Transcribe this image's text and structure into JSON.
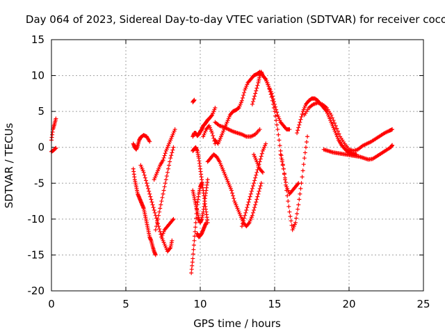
{
  "chart_data": {
    "type": "scatter",
    "title": "Day 064 of 2023, Sidereal Day-to-day VTEC variation (SDTVAR) for receiver coco",
    "xlabel": "GPS time / hours",
    "ylabel": "SDTVAR / TECUs",
    "xlim": [
      0,
      25
    ],
    "ylim": [
      -20,
      15
    ],
    "x_ticks": [
      0,
      5,
      10,
      15,
      20,
      25
    ],
    "y_ticks": [
      -20,
      -15,
      -10,
      -5,
      0,
      5,
      10,
      15
    ],
    "x_tick_labels": [
      "0",
      "5",
      "10",
      "15",
      "20",
      "25"
    ],
    "y_tick_labels": [
      "-20",
      "-15",
      "-10",
      "-5",
      "0",
      "5",
      "10",
      "15"
    ],
    "grid": true,
    "marker": "+",
    "color": "#ff0000",
    "series": [
      {
        "name": "arc-a",
        "x": [
          0.0,
          0.1,
          0.2,
          0.3
        ],
        "y": [
          1.0,
          2.5,
          3.2,
          4.0
        ]
      },
      {
        "name": "arc-b",
        "x": [
          0.0,
          0.15,
          0.3
        ],
        "y": [
          -0.6,
          -0.4,
          -0.1
        ]
      },
      {
        "name": "arc-c",
        "x": [
          5.5,
          5.6,
          5.7,
          5.8,
          5.9,
          6.0,
          6.1,
          6.2,
          6.3,
          6.4,
          6.5,
          6.6,
          6.7,
          6.8,
          6.9,
          7.0
        ],
        "y": [
          -3.0,
          -4.5,
          -5.5,
          -6.5,
          -7.0,
          -7.5,
          -8.0,
          -8.5,
          -9.5,
          -10.5,
          -11.5,
          -12.5,
          -13.0,
          -13.8,
          -14.5,
          -15.0
        ]
      },
      {
        "name": "arc-d",
        "x": [
          5.5,
          5.6,
          5.7,
          5.8,
          5.9,
          6.0,
          6.2,
          6.4,
          6.6
        ],
        "y": [
          0.5,
          0.0,
          -0.3,
          0.3,
          1.0,
          1.4,
          1.7,
          1.5,
          0.8
        ]
      },
      {
        "name": "arc-e",
        "x": [
          6.0,
          6.2,
          6.4,
          6.6,
          6.8,
          7.0,
          7.2,
          7.4,
          7.6,
          7.8,
          8.0,
          8.1
        ],
        "y": [
          -2.5,
          -3.5,
          -5.0,
          -6.5,
          -8.0,
          -9.5,
          -11.0,
          -12.5,
          -13.5,
          -14.5,
          -14.0,
          -13.0
        ]
      },
      {
        "name": "arc-f",
        "x": [
          6.9,
          7.1,
          7.3,
          7.5,
          7.7,
          7.9,
          8.1,
          8.3
        ],
        "y": [
          -4.5,
          -3.5,
          -2.5,
          -1.8,
          -0.5,
          0.5,
          1.5,
          2.5
        ]
      },
      {
        "name": "arc-g",
        "x": [
          7.0,
          7.2,
          7.4,
          7.6,
          7.8,
          8.0,
          8.2
        ],
        "y": [
          -11.5,
          -9.5,
          -7.5,
          -5.5,
          -3.5,
          -1.5,
          0.0
        ]
      },
      {
        "name": "arc-h",
        "x": [
          7.4,
          7.6,
          7.8,
          8.0,
          8.2
        ],
        "y": [
          -12.5,
          -11.5,
          -11.0,
          -10.5,
          -10.0
        ]
      },
      {
        "name": "arc-i",
        "x": [
          9.4,
          9.5,
          9.6,
          9.7,
          9.8,
          9.9,
          10.0,
          10.1
        ],
        "y": [
          -17.5,
          -15.5,
          -13.0,
          -10.5,
          -8.0,
          -6.5,
          -5.5,
          -5.0
        ]
      },
      {
        "name": "arc-j",
        "x": [
          9.5,
          9.6,
          9.7,
          9.8,
          9.9,
          10.0,
          10.1,
          10.2,
          10.3,
          10.4,
          10.5
        ],
        "y": [
          -6.0,
          -7.0,
          -8.0,
          -9.0,
          -10.0,
          -10.5,
          -10.0,
          -9.0,
          -7.5,
          -6.0,
          -4.5
        ]
      },
      {
        "name": "arc-k",
        "x": [
          9.5,
          9.6,
          9.7,
          9.8,
          9.9,
          10.0,
          10.1,
          10.2,
          10.3,
          10.4,
          10.5
        ],
        "y": [
          -0.5,
          -0.2,
          0.0,
          -0.5,
          -1.5,
          -3.0,
          -4.5,
          -6.0,
          -7.5,
          -9.0,
          -10.5
        ]
      },
      {
        "name": "arc-l",
        "x": [
          9.5,
          9.6,
          9.7,
          9.8,
          9.9,
          10.0,
          10.1,
          10.2,
          10.3,
          10.4,
          10.5,
          10.6,
          10.8,
          11.0
        ],
        "y": [
          1.5,
          2.0,
          2.0,
          1.6,
          1.8,
          2.2,
          2.5,
          3.0,
          3.2,
          3.5,
          3.8,
          4.0,
          4.5,
          5.5
        ]
      },
      {
        "name": "arc-m",
        "x": [
          9.5,
          9.6
        ],
        "y": [
          6.3,
          6.6
        ]
      },
      {
        "name": "arc-n",
        "x": [
          9.8,
          9.9,
          10.0,
          10.1,
          10.2,
          10.3,
          10.4
        ],
        "y": [
          -12.0,
          -12.5,
          -12.3,
          -12.0,
          -11.5,
          -11.0,
          -10.5
        ]
      },
      {
        "name": "arc-o",
        "x": [
          10.2,
          10.4,
          10.6,
          10.8,
          11.0
        ],
        "y": [
          1.5,
          2.5,
          3.0,
          2.0,
          0.5
        ]
      },
      {
        "name": "arc-p",
        "x": [
          10.5,
          10.7,
          10.9,
          11.1,
          11.3,
          11.5,
          11.7,
          11.9,
          12.1,
          12.3,
          12.5,
          12.7,
          12.9,
          13.1,
          13.3,
          13.5,
          13.7,
          13.9,
          14.1
        ],
        "y": [
          -2.0,
          -1.5,
          -1.0,
          -1.3,
          -2.0,
          -3.0,
          -4.0,
          -5.0,
          -6.0,
          -7.5,
          -8.5,
          -9.5,
          -10.5,
          -11.0,
          -10.5,
          -9.5,
          -8.0,
          -6.5,
          -5.0
        ]
      },
      {
        "name": "arc-q",
        "x": [
          11.0,
          11.3,
          11.6,
          11.9,
          12.2,
          12.5,
          12.8,
          13.1,
          13.4,
          13.7,
          14.0
        ],
        "y": [
          3.5,
          3.0,
          2.8,
          2.5,
          2.2,
          2.0,
          1.8,
          1.5,
          1.5,
          1.8,
          2.5
        ]
      },
      {
        "name": "arc-r",
        "x": [
          11.0,
          11.2,
          11.4,
          11.6,
          11.8,
          12.0,
          12.2,
          12.4,
          12.6,
          12.8,
          13.0,
          13.2,
          13.4,
          13.6,
          13.8,
          14.0,
          14.2,
          14.4,
          14.6,
          14.8,
          15.0,
          15.2,
          15.4,
          15.6,
          15.8,
          16.0
        ],
        "y": [
          1.0,
          0.5,
          1.5,
          2.5,
          3.5,
          4.5,
          5.0,
          5.2,
          5.5,
          6.5,
          8.0,
          9.0,
          9.5,
          10.0,
          10.2,
          10.5,
          10.0,
          9.5,
          8.5,
          7.5,
          6.0,
          4.5,
          3.5,
          3.0,
          2.5,
          2.5
        ]
      },
      {
        "name": "arc-s",
        "x": [
          12.8,
          13.0,
          13.2,
          13.4,
          13.6,
          13.8,
          14.0,
          14.2,
          14.4
        ],
        "y": [
          -11.0,
          -9.5,
          -8.0,
          -6.5,
          -5.0,
          -3.5,
          -2.0,
          -0.5,
          0.5
        ]
      },
      {
        "name": "arc-t",
        "x": [
          13.5,
          13.7,
          13.9,
          14.0,
          14.1,
          14.2,
          14.4,
          14.6,
          14.8,
          15.0,
          15.2,
          15.4,
          15.6,
          15.8,
          16.0,
          16.2,
          16.4,
          16.6
        ],
        "y": [
          6.0,
          7.5,
          9.0,
          10.0,
          10.5,
          10.0,
          9.5,
          8.5,
          7.0,
          5.0,
          2.5,
          -0.5,
          -3.0,
          -5.5,
          -6.5,
          -6.0,
          -5.5,
          -5.0
        ]
      },
      {
        "name": "arc-u",
        "x": [
          13.6,
          13.8,
          14.0,
          14.2
        ],
        "y": [
          -1.0,
          -2.0,
          -3.0,
          -3.5
        ]
      },
      {
        "name": "arc-v",
        "x": [
          15.4,
          15.6,
          15.8,
          16.0,
          16.2,
          16.4,
          16.6,
          16.8,
          17.0,
          17.2
        ],
        "y": [
          -1.0,
          -3.0,
          -6.0,
          -9.0,
          -11.5,
          -10.5,
          -8.0,
          -5.0,
          -1.5,
          1.5
        ]
      },
      {
        "name": "arc-w",
        "x": [
          16.5,
          16.7,
          16.9,
          17.1,
          17.3,
          17.5,
          17.7,
          17.9,
          18.1,
          18.3,
          18.5,
          18.7,
          18.9,
          19.1,
          19.3,
          19.5,
          19.7,
          19.9,
          20.1,
          20.3,
          20.5
        ],
        "y": [
          2.0,
          3.5,
          5.0,
          6.0,
          6.5,
          6.8,
          6.8,
          6.5,
          6.0,
          5.5,
          5.0,
          4.0,
          3.0,
          2.0,
          1.0,
          0.3,
          -0.2,
          -0.6,
          -0.8,
          -1.0,
          -1.0
        ]
      },
      {
        "name": "arc-x",
        "x": [
          17.0,
          17.3,
          17.6,
          17.9,
          18.2,
          18.5,
          18.8,
          19.1,
          19.4,
          19.7,
          20.0,
          20.3,
          20.6,
          20.9,
          21.2,
          21.5,
          21.8,
          22.1,
          22.4,
          22.7,
          22.9
        ],
        "y": [
          4.5,
          5.5,
          6.0,
          6.2,
          6.0,
          5.5,
          4.5,
          3.0,
          1.5,
          0.5,
          -0.3,
          -0.5,
          -0.3,
          0.2,
          0.5,
          0.8,
          1.2,
          1.6,
          2.0,
          2.3,
          2.5
        ]
      },
      {
        "name": "arc-y",
        "x": [
          18.3,
          18.6,
          18.9,
          19.2,
          19.5,
          19.8,
          20.1,
          20.4,
          20.7,
          21.0,
          21.3,
          21.6,
          21.9,
          22.2,
          22.5,
          22.8,
          22.9
        ],
        "y": [
          -0.3,
          -0.5,
          -0.7,
          -0.8,
          -0.9,
          -1.0,
          -1.1,
          -1.2,
          -1.3,
          -1.5,
          -1.7,
          -1.6,
          -1.2,
          -0.8,
          -0.4,
          0.0,
          0.3
        ]
      }
    ]
  }
}
